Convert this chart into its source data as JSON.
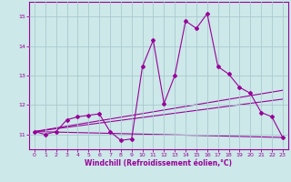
{
  "background_color": "#cce8e8",
  "grid_color": "#aac8d0",
  "line_color": "#990099",
  "xlabel": "Windchill (Refroidissement éolien,°C)",
  "xlim": [
    -0.5,
    23.5
  ],
  "ylim": [
    10.5,
    15.5
  ],
  "yticks": [
    11,
    12,
    13,
    14,
    15
  ],
  "xticks": [
    0,
    1,
    2,
    3,
    4,
    5,
    6,
    7,
    8,
    9,
    10,
    11,
    12,
    13,
    14,
    15,
    16,
    17,
    18,
    19,
    20,
    21,
    22,
    23
  ],
  "series1_x": [
    0,
    1,
    2,
    3,
    4,
    5,
    6,
    7,
    8,
    9,
    10,
    11,
    12,
    13,
    14,
    15,
    16,
    17,
    18,
    19,
    20,
    21,
    22,
    23
  ],
  "series1_y": [
    11.1,
    11.0,
    11.1,
    11.5,
    11.6,
    11.65,
    11.7,
    11.1,
    10.8,
    10.85,
    13.3,
    14.2,
    12.05,
    13.0,
    14.85,
    14.6,
    15.1,
    13.3,
    13.05,
    12.6,
    12.4,
    11.75,
    11.6,
    10.9
  ],
  "series2_x": [
    0,
    23
  ],
  "series2_y": [
    11.1,
    12.5
  ],
  "series3_x": [
    0,
    23
  ],
  "series3_y": [
    11.1,
    12.2
  ],
  "series4_x": [
    0,
    23
  ],
  "series4_y": [
    11.1,
    10.9
  ],
  "marker": "D",
  "marker_size": 2.0,
  "linewidth": 0.8,
  "tick_fontsize": 4.5,
  "xlabel_fontsize": 5.5
}
